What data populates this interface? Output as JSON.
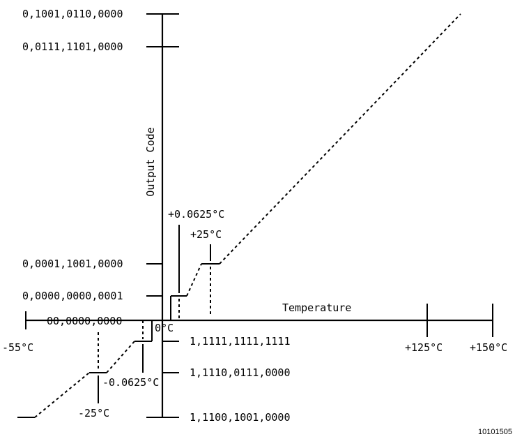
{
  "chart_data": {
    "type": "line",
    "xlabel": "Temperature",
    "ylabel": "Output Code",
    "x_tick_labels": [
      "-55°C",
      "-25°C",
      "-0.0625°C",
      "0°C",
      "+0.0625°C",
      "+25°C",
      "+125°C",
      "+150°C"
    ],
    "y_tick_labels": [
      "0,1001,0110,0000",
      "0,0111,1101,0000",
      "0,0001,1001,0000",
      "0,0000,0000,0001",
      "00,0000,0000",
      "1,1111,1111,1111",
      "1,1110,0111,0000",
      "1,1100,1001,0000"
    ],
    "points": [
      {
        "temperature": "-55°C",
        "code": "1,1100,1001,0000"
      },
      {
        "temperature": "-25°C",
        "code": "1,1110,0111,0000"
      },
      {
        "temperature": "-0.0625°C",
        "code": "1,1111,1111,1111"
      },
      {
        "temperature": "0°C",
        "code": "00,0000,0000"
      },
      {
        "temperature": "+0.0625°C",
        "code": "0,0000,0000,0001"
      },
      {
        "temperature": "+25°C",
        "code": "0,0001,1001,0000"
      },
      {
        "temperature": "+150°C",
        "code": "0,1001,0110,0000"
      }
    ],
    "figure_id": "10101505"
  }
}
